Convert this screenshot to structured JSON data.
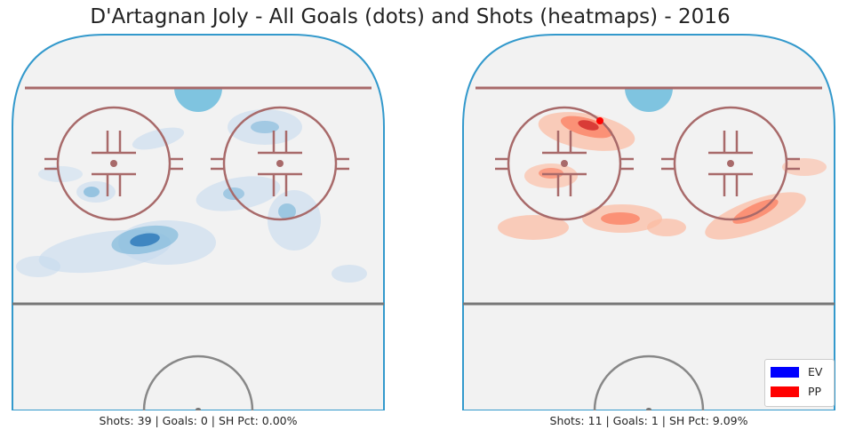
{
  "title": "D'Artagnan Joly - All Goals (dots) and Shots (heatmaps) - 2016",
  "chart_data": [
    {
      "type": "heatmap",
      "description_label": "EV",
      "colors": {
        "light": "#c6dbef",
        "mid": "#6baed6",
        "dark": "#2171b5"
      },
      "shots": 39,
      "goals": 0,
      "sh_pct": "0.00%",
      "caption": "Shots: 39 | Goals: 0 | SH Pct: 0.00%",
      "goal_points": []
    },
    {
      "type": "heatmap",
      "description_label": "PP",
      "colors": {
        "light": "#fcbba1",
        "mid": "#fb6a4a",
        "dark": "#cb181d"
      },
      "shots": 11,
      "goals": 1,
      "sh_pct": "9.09%",
      "caption": "Shots: 11 | Goals: 1 | SH Pct: 9.09%",
      "goal_points": [
        {
          "color": "#ff0000"
        }
      ]
    }
  ],
  "legend": {
    "placement": "lower-right",
    "entries": [
      {
        "label": "EV",
        "color": "#0000ff"
      },
      {
        "label": "PP",
        "color": "#ff0000"
      }
    ]
  },
  "rink_colors": {
    "ice": "#f2f2f2",
    "boards": "#3399cc",
    "goal_line": "#a86a6a",
    "circles": "#a86a6a",
    "crease": "#7fc4e0",
    "blue_line": "#777777",
    "center_circle": "#888888"
  }
}
